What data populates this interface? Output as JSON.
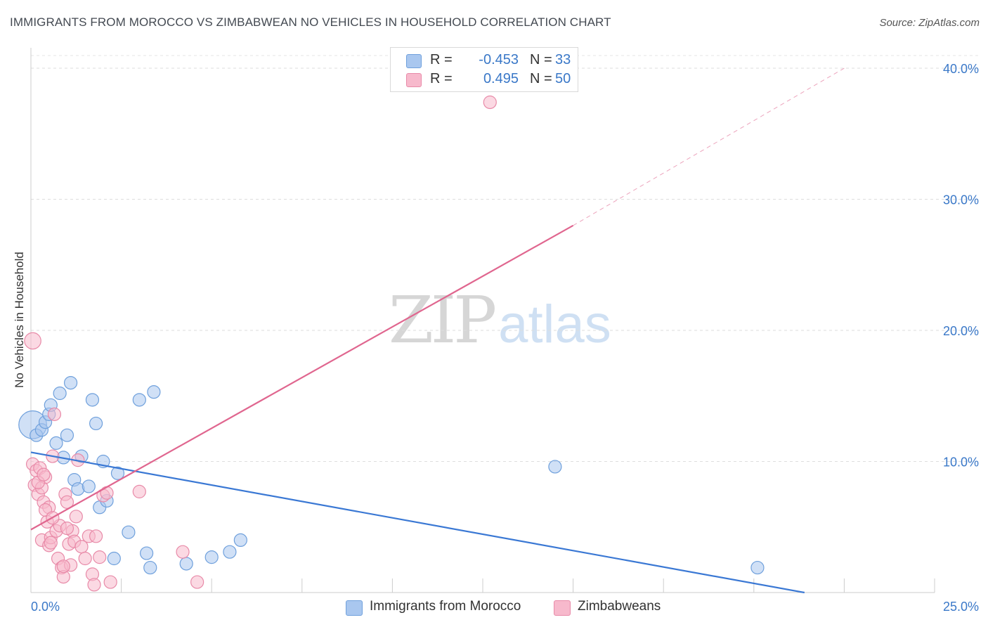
{
  "header": {
    "title": "IMMIGRANTS FROM MOROCCO VS ZIMBABWEAN NO VEHICLES IN HOUSEHOLD CORRELATION CHART",
    "source": "Source: ZipAtlas.com"
  },
  "watermark": {
    "zip": "ZIP",
    "atlas": "atlas"
  },
  "legend": {
    "items": [
      {
        "r_label": "R =",
        "r_value": "-0.453",
        "n_label": "N =",
        "n_value": "33",
        "color": "#a9c7ef",
        "border": "#6fa0dc"
      },
      {
        "r_label": "R =",
        "r_value": "0.495",
        "n_label": "N =",
        "n_value": "50",
        "color": "#f7b9cc",
        "border": "#e88aa8"
      }
    ]
  },
  "bottom_legend": {
    "items": [
      {
        "label": "Immigrants from Morocco",
        "color": "#a9c7ef",
        "border": "#6fa0dc"
      },
      {
        "label": "Zimbabweans",
        "color": "#f7b9cc",
        "border": "#e88aa8"
      }
    ]
  },
  "chart_data": {
    "type": "scatter",
    "title": "IMMIGRANTS FROM MOROCCO VS ZIMBABWEAN NO VEHICLES IN HOUSEHOLD CORRELATION CHART",
    "xlabel": "",
    "ylabel": "No Vehicles in Household",
    "xlim": [
      0,
      25
    ],
    "ylim": [
      0,
      40
    ],
    "x_tick_labels": [
      "0.0%",
      "25.0%"
    ],
    "y_ticks": [
      10,
      20,
      30,
      40
    ],
    "y_tick_labels": [
      "10.0%",
      "20.0%",
      "30.0%",
      "40.0%"
    ],
    "grid": true,
    "legend_position": "top-center",
    "series": [
      {
        "name": "Immigrants from Morocco",
        "color": "#6fa0dc",
        "fill": "#a9c7ef",
        "trend_color": "#3a78d4",
        "trend": {
          "x": [
            0,
            21.4
          ],
          "y": [
            10.7,
            0
          ]
        },
        "points": [
          {
            "x": 0.05,
            "y": 12.8,
            "r": 2.2
          },
          {
            "x": 0.15,
            "y": 12.0
          },
          {
            "x": 0.3,
            "y": 12.4
          },
          {
            "x": 0.4,
            "y": 13.0
          },
          {
            "x": 0.5,
            "y": 13.6
          },
          {
            "x": 0.55,
            "y": 14.3
          },
          {
            "x": 0.7,
            "y": 11.4
          },
          {
            "x": 0.8,
            "y": 15.2
          },
          {
            "x": 0.9,
            "y": 10.3
          },
          {
            "x": 1.0,
            "y": 12.0
          },
          {
            "x": 1.1,
            "y": 16.0
          },
          {
            "x": 1.2,
            "y": 8.6
          },
          {
            "x": 1.3,
            "y": 7.9
          },
          {
            "x": 1.4,
            "y": 10.4
          },
          {
            "x": 1.6,
            "y": 8.1
          },
          {
            "x": 1.7,
            "y": 14.7
          },
          {
            "x": 1.8,
            "y": 12.9
          },
          {
            "x": 1.9,
            "y": 6.5
          },
          {
            "x": 2.0,
            "y": 10.0
          },
          {
            "x": 2.1,
            "y": 7.0
          },
          {
            "x": 2.3,
            "y": 2.6
          },
          {
            "x": 2.4,
            "y": 9.1
          },
          {
            "x": 2.7,
            "y": 4.6
          },
          {
            "x": 3.0,
            "y": 14.7
          },
          {
            "x": 3.2,
            "y": 3.0
          },
          {
            "x": 3.3,
            "y": 1.9
          },
          {
            "x": 3.4,
            "y": 15.3
          },
          {
            "x": 4.3,
            "y": 2.2
          },
          {
            "x": 5.0,
            "y": 2.7
          },
          {
            "x": 5.5,
            "y": 3.1
          },
          {
            "x": 5.8,
            "y": 4.0
          },
          {
            "x": 14.5,
            "y": 9.6
          },
          {
            "x": 20.1,
            "y": 1.9
          }
        ]
      },
      {
        "name": "Zimbabweans",
        "color": "#e88aa8",
        "fill": "#f7b9cc",
        "trend_color": "#e0668f",
        "trend": {
          "x": [
            0,
            15
          ],
          "y": [
            4.8,
            28.0
          ]
        },
        "trend_dashed": {
          "x": [
            15,
            22.5
          ],
          "y": [
            28.0,
            40.0
          ]
        },
        "points": [
          {
            "x": 0.05,
            "y": 19.2,
            "r": 1.3
          },
          {
            "x": 0.05,
            "y": 9.8
          },
          {
            "x": 0.1,
            "y": 8.2
          },
          {
            "x": 0.15,
            "y": 9.3
          },
          {
            "x": 0.2,
            "y": 7.5
          },
          {
            "x": 0.25,
            "y": 9.5
          },
          {
            "x": 0.3,
            "y": 8.0
          },
          {
            "x": 0.3,
            "y": 4.0
          },
          {
            "x": 0.35,
            "y": 6.9
          },
          {
            "x": 0.4,
            "y": 8.8
          },
          {
            "x": 0.45,
            "y": 5.4
          },
          {
            "x": 0.5,
            "y": 6.5
          },
          {
            "x": 0.5,
            "y": 3.6
          },
          {
            "x": 0.55,
            "y": 4.2
          },
          {
            "x": 0.6,
            "y": 10.4
          },
          {
            "x": 0.65,
            "y": 13.6
          },
          {
            "x": 0.7,
            "y": 4.7
          },
          {
            "x": 0.75,
            "y": 2.6
          },
          {
            "x": 0.8,
            "y": 5.1
          },
          {
            "x": 0.85,
            "y": 1.9
          },
          {
            "x": 0.9,
            "y": 1.2
          },
          {
            "x": 0.95,
            "y": 7.5
          },
          {
            "x": 1.0,
            "y": 6.9
          },
          {
            "x": 1.05,
            "y": 3.7
          },
          {
            "x": 1.1,
            "y": 2.1
          },
          {
            "x": 1.15,
            "y": 4.7
          },
          {
            "x": 1.2,
            "y": 3.9
          },
          {
            "x": 1.25,
            "y": 5.8
          },
          {
            "x": 1.3,
            "y": 10.1
          },
          {
            "x": 1.4,
            "y": 3.5
          },
          {
            "x": 1.5,
            "y": 2.6
          },
          {
            "x": 1.6,
            "y": 4.3
          },
          {
            "x": 1.7,
            "y": 1.4
          },
          {
            "x": 1.75,
            "y": 0.6
          },
          {
            "x": 1.9,
            "y": 2.7
          },
          {
            "x": 2.0,
            "y": 7.4
          },
          {
            "x": 2.1,
            "y": 7.6
          },
          {
            "x": 2.2,
            "y": 0.8
          },
          {
            "x": 3.0,
            "y": 7.7
          },
          {
            "x": 4.2,
            "y": 3.1
          },
          {
            "x": 4.6,
            "y": 0.8
          },
          {
            "x": 12.7,
            "y": 37.4
          },
          {
            "x": 0.4,
            "y": 6.3
          },
          {
            "x": 0.6,
            "y": 5.7
          },
          {
            "x": 0.2,
            "y": 8.4
          },
          {
            "x": 1.0,
            "y": 4.9
          },
          {
            "x": 1.8,
            "y": 4.3
          },
          {
            "x": 0.9,
            "y": 2.0
          },
          {
            "x": 0.55,
            "y": 3.8
          },
          {
            "x": 0.35,
            "y": 9.0
          }
        ]
      }
    ]
  }
}
